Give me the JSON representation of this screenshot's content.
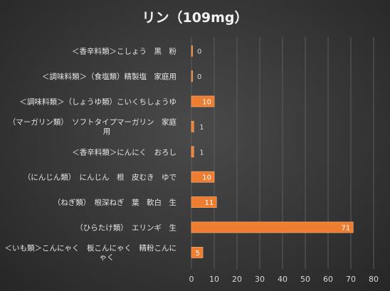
{
  "chart_data": {
    "type": "bar",
    "orientation": "horizontal",
    "title": "リン（109mg）",
    "categories": [
      "＜香辛料類＞こしょう　黒　粉",
      "＜調味料類＞（食塩類）精製塩　家庭用",
      "＜調味料類＞（しょうゆ類）こいくちしょうゆ",
      "（マーガリン類）　ソフトタイプマーガリン　家庭用",
      "＜香辛料類＞にんにく　おろし",
      "（にんじん類）　にんじん　根　皮むき　ゆで",
      "（ねぎ類）　根深ねぎ　葉　軟白　生",
      "（ひらたけ類）　エリンギ　生",
      "＜いも類＞こんにゃく　板こんにゃく　精粉こんにゃく"
    ],
    "values": [
      0,
      0,
      10,
      1,
      1,
      10,
      11,
      71,
      5
    ],
    "data_labels": [
      "0",
      "0",
      "10",
      "1",
      "1",
      "10",
      "11",
      "71",
      "5"
    ],
    "xlim": [
      0,
      80
    ],
    "xticks": [
      "0",
      "10",
      "20",
      "30",
      "40",
      "50",
      "60",
      "70",
      "80"
    ],
    "grid": true,
    "colors": {
      "bar": "#ed7d31",
      "bar_border": "#f4a46a",
      "grid": "#5c5c5c",
      "text": "#e6e6e6",
      "label_outside": "#d9d9d9",
      "label_inside": "#ffffff"
    }
  }
}
